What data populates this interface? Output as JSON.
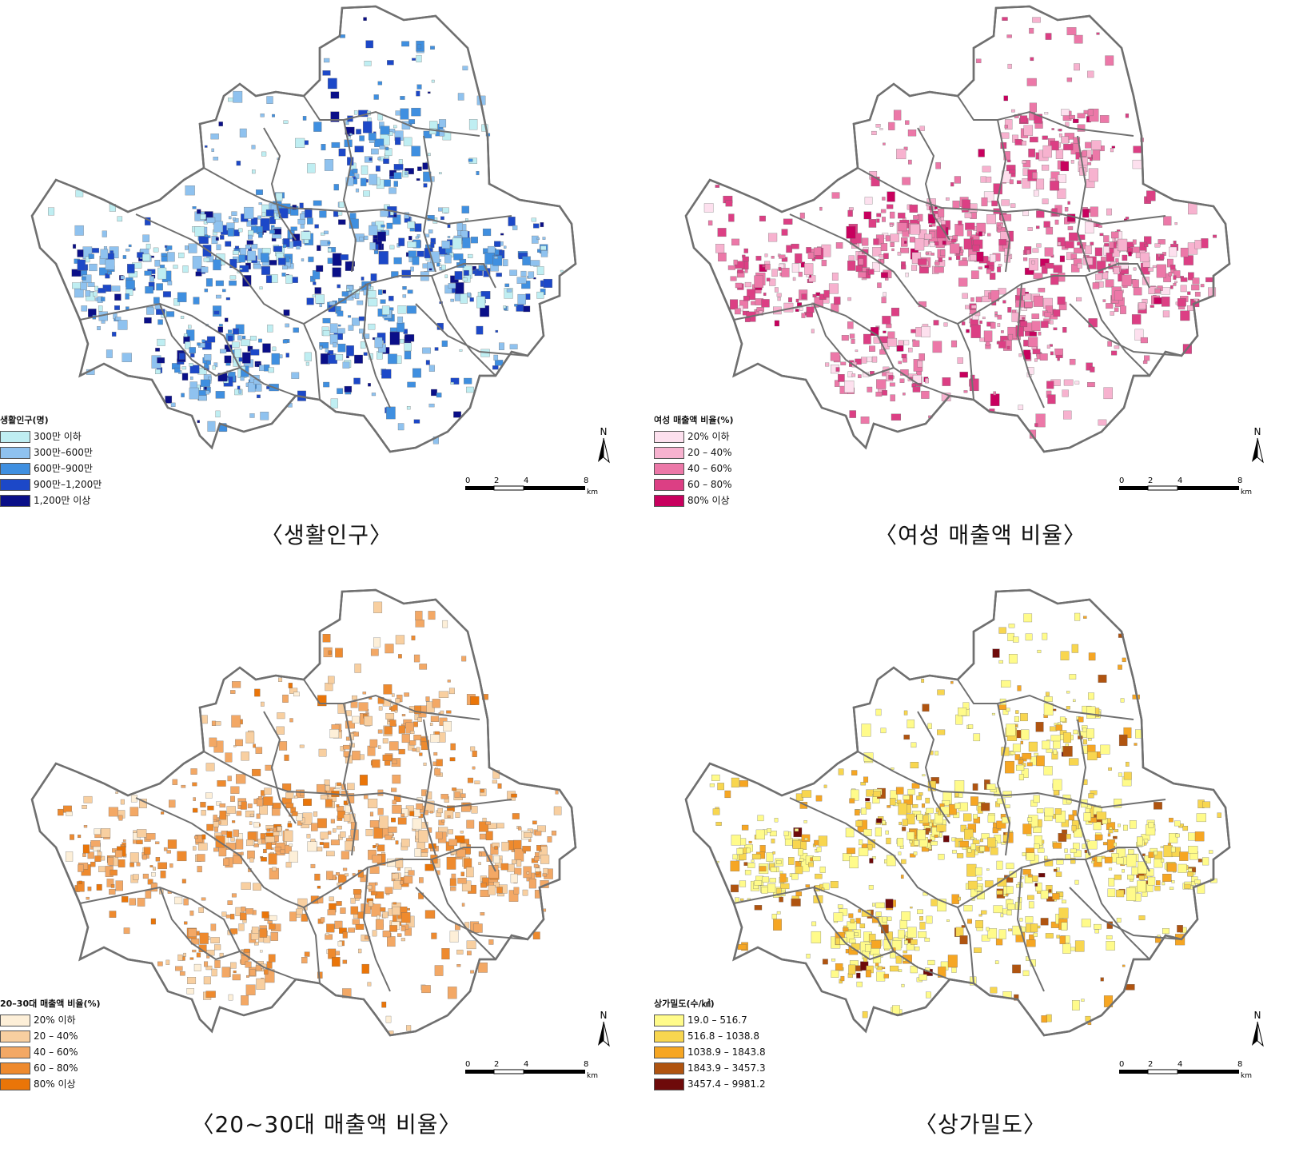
{
  "panels": [
    {
      "caption": "〈생활인구〉",
      "legend_title": "생활인구(명)",
      "classes": [
        {
          "label": "300만 이하",
          "color": "#bfeef2"
        },
        {
          "label": "300만–600만",
          "color": "#8fc2ef"
        },
        {
          "label": "600만–900만",
          "color": "#3f8fe0"
        },
        {
          "label": "900만–1,200만",
          "color": "#1c48c8"
        },
        {
          "label": "1,200만 이상",
          "color": "#0a0f88"
        }
      ]
    },
    {
      "caption": "〈여성 매출액 비율〉",
      "legend_title": "여성 매출액 비율(%)",
      "classes": [
        {
          "label": "20% 이하",
          "color": "#fde0ee"
        },
        {
          "label": "20 – 40%",
          "color": "#f7b2cf"
        },
        {
          "label": "40 – 60%",
          "color": "#ec78a8"
        },
        {
          "label": "60 – 80%",
          "color": "#dc3f84"
        },
        {
          "label": "80% 이상",
          "color": "#c8005e"
        }
      ]
    },
    {
      "caption": "〈20~30대 매출액 비율〉",
      "legend_title": "20–30대 매출액 비율(%)",
      "classes": [
        {
          "label": "20% 이하",
          "color": "#fdefd8"
        },
        {
          "label": "20 – 40%",
          "color": "#f8cfa0"
        },
        {
          "label": "40 – 60%",
          "color": "#f3a865"
        },
        {
          "label": "60 – 80%",
          "color": "#ee8a2e"
        },
        {
          "label": "80% 이상",
          "color": "#ea7508"
        }
      ]
    },
    {
      "caption": "〈상가밀도〉",
      "legend_title": "상가밀도(수/㎢)",
      "classes": [
        {
          "label": "19.0 – 516.7",
          "color": "#fffb8a"
        },
        {
          "label": "516.8 – 1038.8",
          "color": "#f8d64f"
        },
        {
          "label": "1038.9 – 1843.8",
          "color": "#f6a623"
        },
        {
          "label": "1843.9 – 3457.3",
          "color": "#b05410"
        },
        {
          "label": "3457.4 – 9981.2",
          "color": "#6e0a0a"
        }
      ]
    }
  ],
  "north_label": "N",
  "scale": {
    "ticks": [
      "0",
      "2",
      "4",
      "8"
    ],
    "unit": "km"
  }
}
